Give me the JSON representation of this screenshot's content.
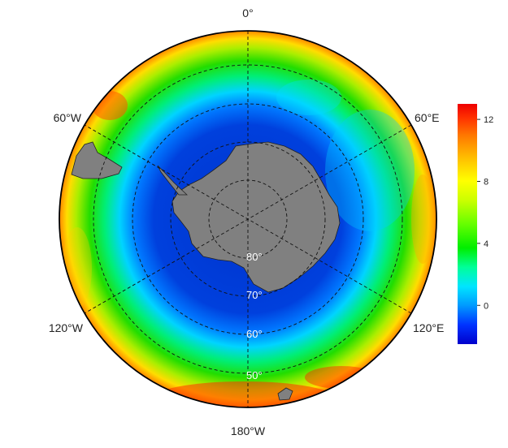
{
  "map": {
    "projection": "south polar stereographic",
    "longitude_labels": {
      "top": "0°",
      "upper_right": "60°E",
      "lower_right": "120°E",
      "bottom": "180°W",
      "lower_left": "120°W",
      "upper_left": "60°W"
    },
    "latitude_labels": [
      "80°",
      "70°",
      "60°",
      "50°"
    ],
    "land_color": "#808080",
    "coast_color": "#222222",
    "grid_style": "dashed"
  },
  "colorbar": {
    "min": -2.5,
    "max": 13,
    "ticks": [
      {
        "value": 12,
        "label": "12"
      },
      {
        "value": 8,
        "label": "8"
      },
      {
        "value": 4,
        "label": "4"
      },
      {
        "value": 0,
        "label": "0"
      }
    ],
    "colors": [
      "#0000cc",
      "#0033ff",
      "#0099ff",
      "#00e5ff",
      "#00ff99",
      "#00ee00",
      "#66ff00",
      "#ccff00",
      "#ffff00",
      "#ffbb00",
      "#ff7700",
      "#ff3300",
      "#ee0000"
    ]
  }
}
